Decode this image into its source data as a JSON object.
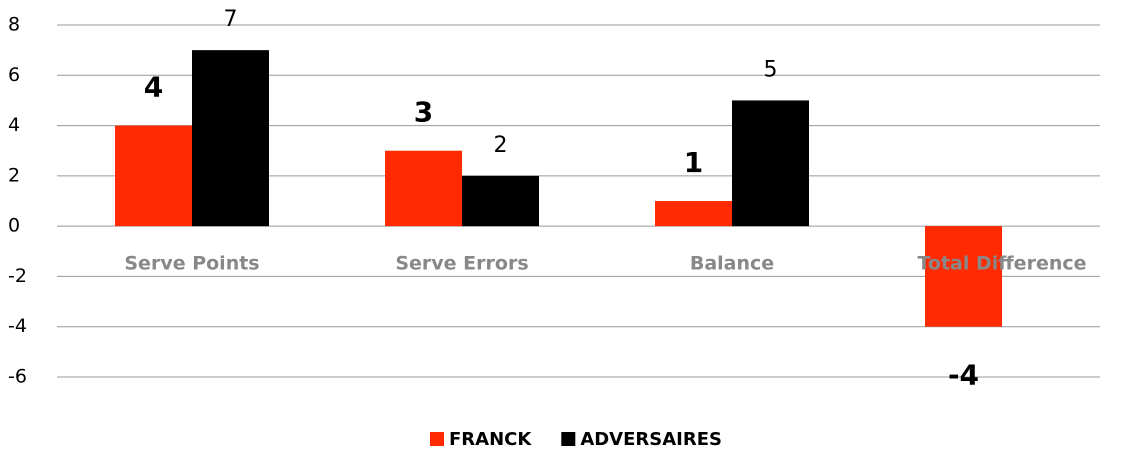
{
  "chart_data": {
    "type": "bar",
    "categories": [
      "Serve Points",
      "Serve Errors",
      "Balance",
      "Total Difference"
    ],
    "series": [
      {
        "name": "FRANCK",
        "color": "#ff2a00",
        "values": [
          4,
          3,
          1,
          -4
        ]
      },
      {
        "name": "ADVERSAIRES",
        "color": "#000000",
        "values": [
          7,
          2,
          5,
          null
        ]
      }
    ],
    "ylim": [
      -6,
      8
    ],
    "yticks": [
      -6,
      -4,
      -2,
      0,
      2,
      4,
      6,
      8
    ],
    "grid": true,
    "legend": "bottom"
  }
}
